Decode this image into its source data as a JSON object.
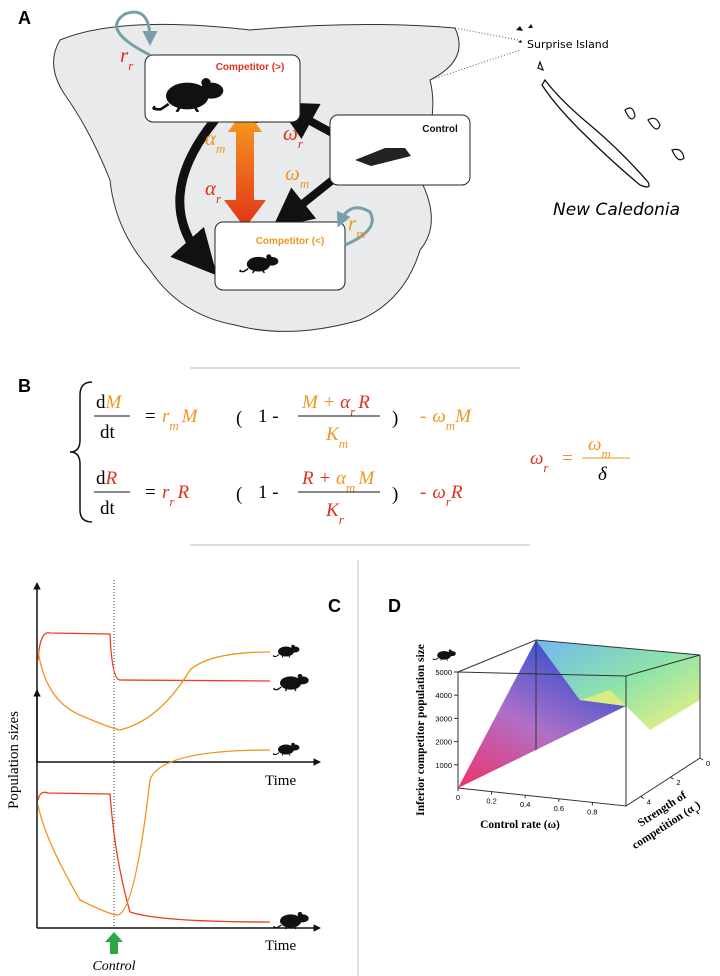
{
  "panel_a": {
    "label": "A",
    "nodes": [
      {
        "label": "Competitor (>)"
      },
      {
        "label": "Control"
      },
      {
        "label": "Competitor (<)"
      }
    ],
    "rates": [
      {
        "symbol": "r",
        "sub": "r"
      },
      {
        "symbol": "α",
        "sub": "m"
      },
      {
        "symbol": "ω",
        "sub": "r"
      },
      {
        "symbol": "α",
        "sub": "r"
      },
      {
        "symbol": "ω",
        "sub": "m"
      },
      {
        "symbol": "r",
        "sub": "m"
      }
    ],
    "map_labels": [
      "Surprise Island",
      "New Caledonia"
    ]
  },
  "panel_b": {
    "label": "B",
    "eq1": [
      "d",
      "M",
      "dt",
      "=",
      "r",
      "m",
      "M",
      "1 -",
      "M + ",
      "α",
      "r",
      "R",
      "K",
      "m",
      "-",
      "ω",
      "m",
      "M"
    ],
    "eq2": [
      "d",
      "R",
      "dt",
      "=",
      "r",
      "r",
      "R",
      "1 -",
      "R + ",
      "α",
      "m",
      "M",
      "K",
      "r",
      "-",
      "ω",
      "r",
      "R"
    ],
    "eq3": [
      "ω",
      "r",
      "=",
      "ω",
      "m",
      "δ"
    ]
  },
  "panel_c": {
    "label": "C",
    "y_label": "Population sizes",
    "x_labels": [
      "Time",
      "Time"
    ],
    "arrow_label": "Control"
  },
  "panel_d": {
    "label": "D",
    "z_label": "Inferior competitor population size",
    "x_label": "Control rate (ω)",
    "y_label": [
      "Strength of",
      "competition (α",
      "r",
      ")"
    ],
    "zlim": [
      0,
      5000
    ],
    "zticks": [
      1000,
      2000,
      3000,
      4000,
      5000
    ],
    "xlim": [
      0,
      1
    ],
    "xticks": [
      0,
      0.2,
      0.4,
      0.6,
      0.8
    ],
    "ylim": [
      0,
      5
    ],
    "yticks": [
      0,
      2,
      4
    ]
  }
}
